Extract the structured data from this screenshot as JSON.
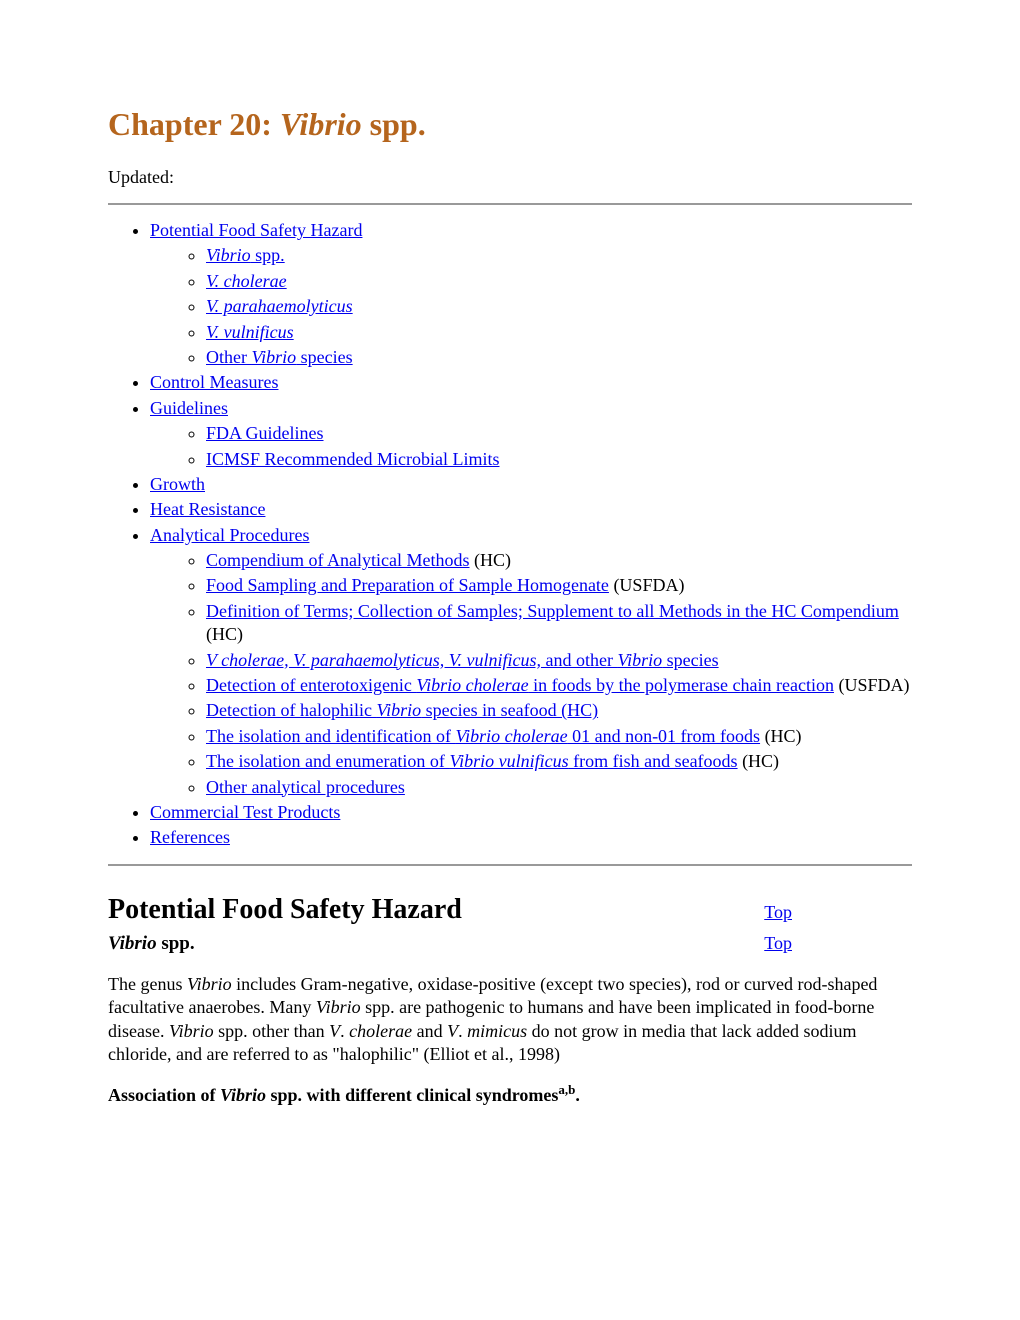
{
  "title_prefix": "Chapter 20: ",
  "title_em": "Vibrio",
  "title_suffix": " spp.",
  "updated_label": "Updated:",
  "toc": {
    "potential_hazard": "Potential Food Safety Hazard",
    "vibrio_spp_em": "Vibrio",
    "vibrio_spp_suffix": " spp.",
    "v_cholerae": "V. cholerae",
    "v_parahaemolyticus": "V. parahaemolyticus",
    "v_vulnificus": "V. vulnificus",
    "other_prefix": "Other ",
    "other_em": "Vibrio",
    "other_suffix": " species",
    "control_measures": "Control Measures",
    "guidelines": "Guidelines",
    "fda_guidelines": "FDA Guidelines",
    "icmsf": "ICMSF Recommended Microbial Limits",
    "growth": "Growth",
    "heat_resistance": "Heat Resistance",
    "analytical_procedures": "Analytical Procedures",
    "compendium": "Compendium of Analytical Methods",
    "compendium_suffix": " (HC)",
    "food_sampling": "Food Sampling and Preparation of Sample Homogenate",
    "food_sampling_suffix": " (USFDA)",
    "definition_terms": "Definition of Terms; Collection of Samples; Supplement to all Methods in the HC Compendium",
    "definition_terms_suffix": " (HC)",
    "v_cholerae_etc_em1": "V cholerae, V. parahaemolyticus, V. vulnificus,",
    "v_cholerae_etc_mid": " and other ",
    "v_cholerae_etc_em2": "Vibrio",
    "v_cholerae_etc_suffix": " species",
    "detection_entero_prefix": "Detection of enterotoxigenic ",
    "detection_entero_em": "Vibrio cholerae",
    "detection_entero_suffix": " in foods by the polymerase chain reaction",
    "detection_entero_outer": " (USFDA)",
    "detection_halo_prefix": "Detection of halophilic ",
    "detection_halo_em": "Vibrio",
    "detection_halo_suffix": " species in seafood (HC)",
    "isolation_vc_prefix": "The isolation and identification of ",
    "isolation_vc_em": "Vibrio cholerae",
    "isolation_vc_suffix": " 01 and non-01 from foods",
    "isolation_vc_outer": " (HC)",
    "isolation_vv_prefix": "The isolation and enumeration of ",
    "isolation_vv_em": "Vibrio vulnificus",
    "isolation_vv_suffix": " from fish and seafoods",
    "isolation_vv_outer": " (HC)",
    "other_analytical": "Other analytical procedures",
    "commercial_test": "Commercial Test Products",
    "references": "References"
  },
  "section": {
    "h2": "Potential Food Safety Hazard",
    "h3_em": "Vibrio",
    "h3_suffix": " spp.",
    "top": "Top"
  },
  "para": {
    "t1": "The genus ",
    "e1": "Vibrio",
    "t2": " includes Gram-negative, oxidase-positive (except two species), rod or curved rod-shaped facultative anaerobes. Many ",
    "e2": "Vibrio",
    "t3": " spp. are pathogenic to humans and have been implicated in food-borne disease. ",
    "e3": "Vibrio",
    "t4": " spp. other than ",
    "e4": "V",
    "t5": ". ",
    "e5": "cholerae",
    "t6": " and ",
    "e6": "V",
    "t7": ". ",
    "e7": "mimicus",
    "t8": " do not grow in media that lack added sodium chloride, and are referred to as \"halophilic\" (Elliot et al., 1998)"
  },
  "assoc": {
    "t1": "Association of ",
    "e1": "Vibrio",
    "t2": " spp. with different clinical syndromes",
    "sup": "a,b",
    "t3": "."
  }
}
